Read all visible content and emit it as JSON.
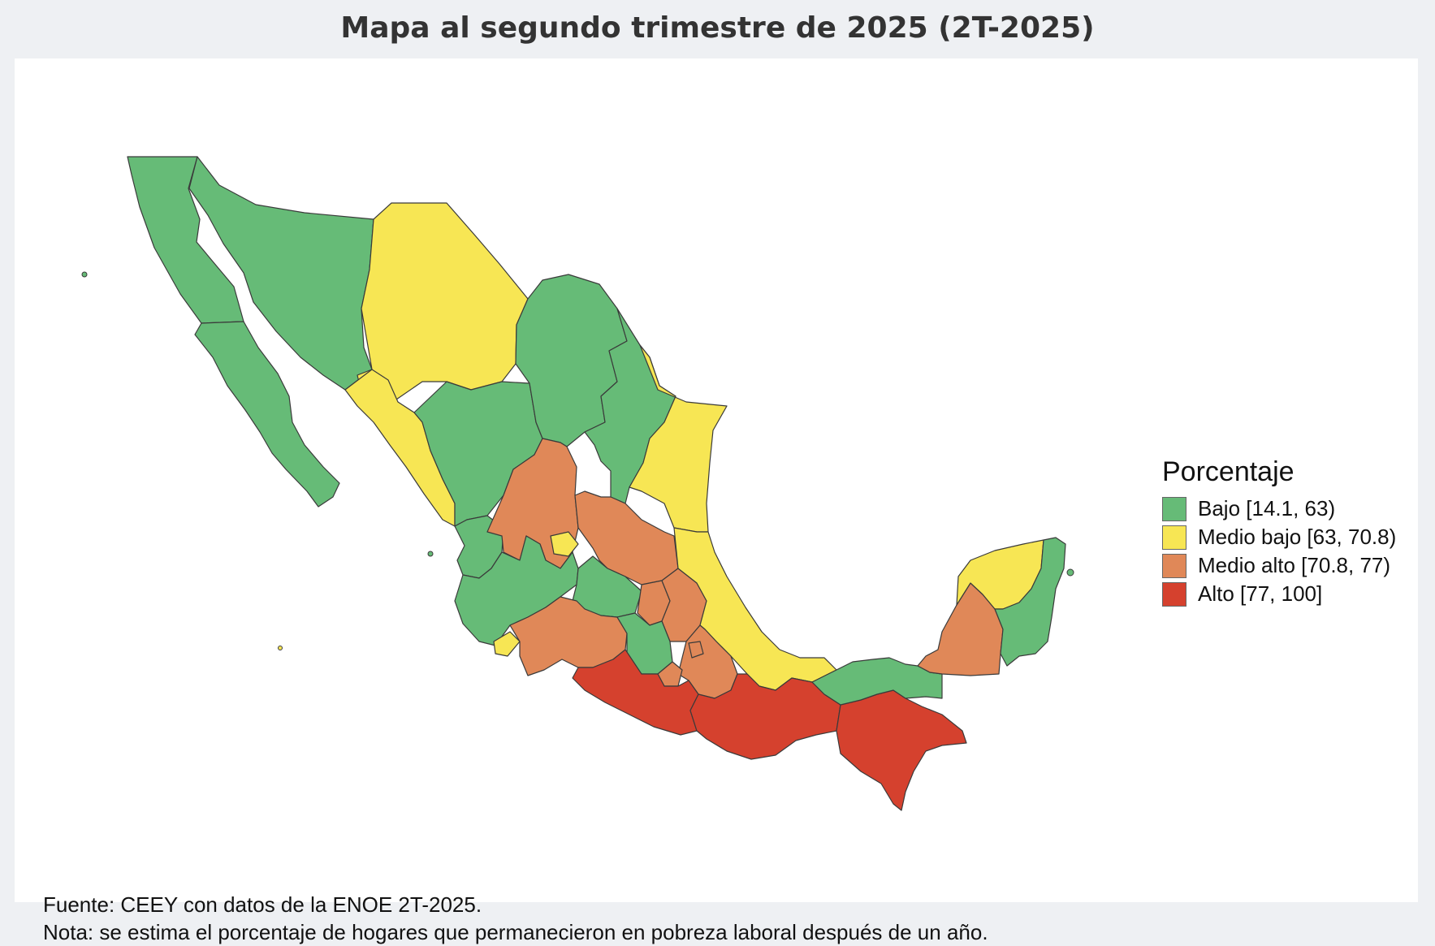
{
  "title": "Mapa al segundo trimestre de 2025 (2T-2025)",
  "legend": {
    "title": "Porcentaje",
    "items": [
      {
        "label": "Bajo [14.1, 63)",
        "color": "#66bb77"
      },
      {
        "label": "Medio bajo [63, 70.8)",
        "color": "#f7e654"
      },
      {
        "label": "Medio alto [70.8, 77)",
        "color": "#e08858"
      },
      {
        "label": "Alto [77, 100]",
        "color": "#d5412e"
      }
    ]
  },
  "notes": {
    "source": "Fuente: CEEY con datos de la ENOE 2T-2025.",
    "note": "Nota: se estima el porcentaje de hogares que permanecieron en pobreza laboral después de un año."
  },
  "regions": [
    {
      "name": "Baja California",
      "category": "Bajo"
    },
    {
      "name": "Baja California Sur",
      "category": "Bajo"
    },
    {
      "name": "Sonora",
      "category": "Bajo"
    },
    {
      "name": "Chihuahua",
      "category": "Medio bajo"
    },
    {
      "name": "Sinaloa",
      "category": "Medio bajo"
    },
    {
      "name": "Durango",
      "category": "Bajo"
    },
    {
      "name": "Coahuila",
      "category": "Bajo"
    },
    {
      "name": "Nuevo León",
      "category": "Bajo"
    },
    {
      "name": "Tamaulipas",
      "category": "Medio bajo"
    },
    {
      "name": "Nayarit",
      "category": "Bajo"
    },
    {
      "name": "Zacatecas",
      "category": "Medio alto"
    },
    {
      "name": "Aguascalientes",
      "category": "Medio bajo"
    },
    {
      "name": "San Luis Potosí",
      "category": "Medio alto"
    },
    {
      "name": "Jalisco",
      "category": "Bajo"
    },
    {
      "name": "Guanajuato",
      "category": "Bajo"
    },
    {
      "name": "Querétaro",
      "category": "Medio alto"
    },
    {
      "name": "Hidalgo",
      "category": "Medio alto"
    },
    {
      "name": "Veracruz",
      "category": "Medio bajo"
    },
    {
      "name": "Colima",
      "category": "Medio bajo"
    },
    {
      "name": "Michoacán",
      "category": "Medio alto"
    },
    {
      "name": "Estado de México",
      "category": "Bajo"
    },
    {
      "name": "Puebla",
      "category": "Medio alto"
    },
    {
      "name": "Tlaxcala",
      "category": "Medio alto"
    },
    {
      "name": "Morelos",
      "category": "Medio alto"
    },
    {
      "name": "Guerrero",
      "category": "Alto"
    },
    {
      "name": "Oaxaca",
      "category": "Alto"
    },
    {
      "name": "Chiapas",
      "category": "Alto"
    },
    {
      "name": "Tabasco",
      "category": "Bajo"
    },
    {
      "name": "Campeche",
      "category": "Medio alto"
    },
    {
      "name": "Yucatán",
      "category": "Medio bajo"
    },
    {
      "name": "Quintana Roo",
      "category": "Bajo"
    }
  ]
}
